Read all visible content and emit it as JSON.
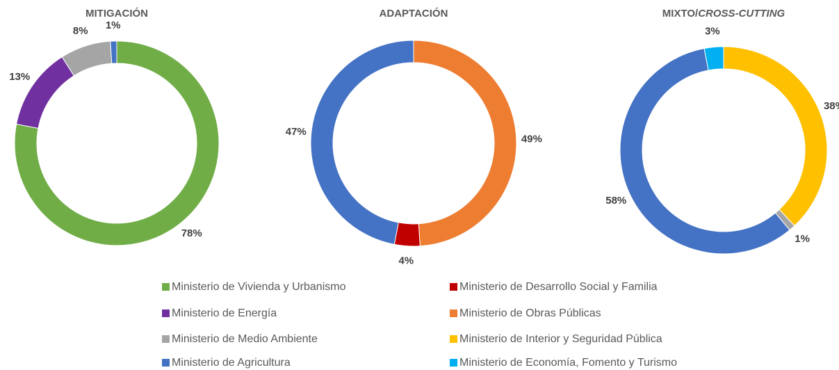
{
  "chart_data": [
    {
      "type": "pie",
      "title": "MITIGACIÓN",
      "values": [
        78,
        13,
        8,
        1
      ],
      "value_labels": [
        "78%",
        "13%",
        "8%",
        "1%"
      ],
      "colors": [
        "#70ad47",
        "#7030a0",
        "#a5a5a5",
        "#4472c4"
      ]
    },
    {
      "type": "pie",
      "title": "ADAPTACIÓN",
      "values": [
        49,
        4,
        47
      ],
      "value_labels": [
        "49%",
        "4%",
        "47%"
      ],
      "colors": [
        "#ed7d31",
        "#c00000",
        "#4472c4"
      ]
    },
    {
      "type": "pie",
      "title": "MIXTO/",
      "title_emphasis": "CROSS-CUTTING",
      "values": [
        38,
        1,
        58,
        3
      ],
      "value_labels": [
        "38%",
        "1%",
        "58%",
        "3%"
      ],
      "colors": [
        "#ffc000",
        "#a5a5a5",
        "#4472c4",
        "#00b0f0"
      ]
    }
  ],
  "legend": [
    {
      "name": "Ministerio de Vivienda y Urbanismo",
      "color": "#70ad47"
    },
    {
      "name": "Ministerio de Energía",
      "color": "#7030a0"
    },
    {
      "name": "Ministerio de Medio Ambiente",
      "color": "#a5a5a5"
    },
    {
      "name": "Ministerio de Agricultura",
      "color": "#4472c4"
    },
    {
      "name": "Ministerio de Desarrollo Social y Familia",
      "color": "#c00000"
    },
    {
      "name": "Ministerio de Obras Públicas",
      "color": "#ed7d31"
    },
    {
      "name": "Ministerio de Interior y Seguridad Pública",
      "color": "#ffc000"
    },
    {
      "name": "Ministerio de Economía, Fomento y Turismo",
      "color": "#00b0f0"
    }
  ]
}
